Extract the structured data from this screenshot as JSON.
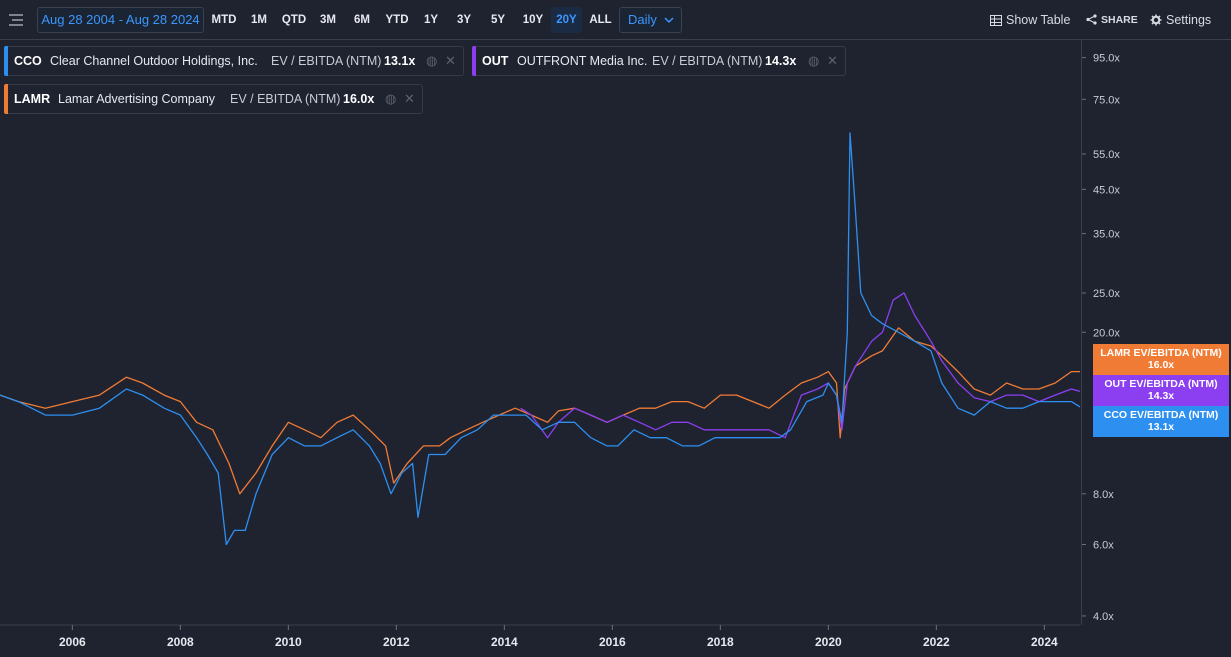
{
  "toolbar": {
    "date_range": "Aug 28 2004 - Aug 28 2024",
    "periods": [
      "MTD",
      "1M",
      "QTD",
      "3M",
      "6M",
      "YTD",
      "1Y",
      "3Y",
      "5Y",
      "10Y",
      "20Y",
      "ALL"
    ],
    "active_period": "20Y",
    "interval": "Daily",
    "show_table": "Show Table",
    "share": "SHARE",
    "settings": "Settings"
  },
  "legend": [
    {
      "ticker": "CCO",
      "name": "Clear Channel Outdoor Holdings, Inc.",
      "metric": "EV / EBITDA (NTM)",
      "value": "13.1x",
      "color": "#2d8ff0"
    },
    {
      "ticker": "OUT",
      "name": "OUTFRONT Media Inc.",
      "metric": "EV / EBITDA (NTM)",
      "value": "14.3x",
      "color": "#8b3ff0"
    },
    {
      "ticker": "LAMR",
      "name": "Lamar Advertising Company",
      "metric": "EV / EBITDA (NTM)",
      "value": "16.0x",
      "color": "#f07b35"
    }
  ],
  "tags": [
    {
      "label": "LAMR EV/EBITDA (NTM)",
      "value": "16.0x",
      "color": "#f07b35"
    },
    {
      "label": "OUT EV/EBITDA (NTM)",
      "value": "14.3x",
      "color": "#8b3ff0"
    },
    {
      "label": "CCO EV/EBITDA (NTM)",
      "value": "13.1x",
      "color": "#2d8ff0"
    }
  ],
  "chart_data": {
    "type": "line",
    "y_scale": "log",
    "ylim": [
      3.8,
      105
    ],
    "xlim": [
      2004.66,
      2024.66
    ],
    "y_ticks": [
      4,
      6,
      8,
      20,
      25,
      35,
      45,
      55,
      75,
      95
    ],
    "y_tick_labels": [
      "4.0x",
      "6.0x",
      "8.0x",
      "20.0x",
      "25.0x",
      "35.0x",
      "45.0x",
      "55.0x",
      "75.0x",
      "95.0x"
    ],
    "x_ticks": [
      2006,
      2008,
      2010,
      2012,
      2014,
      2016,
      2018,
      2020,
      2022,
      2024
    ],
    "x_tick_labels": [
      "2006",
      "2008",
      "2010",
      "2012",
      "2014",
      "2016",
      "2018",
      "2020",
      "2022",
      "2024"
    ],
    "series": [
      {
        "name": "LAMR",
        "color": "#f07b35",
        "x": [
          2004.66,
          2005.0,
          2005.5,
          2006.0,
          2006.5,
          2007.0,
          2007.3,
          2007.7,
          2008.0,
          2008.3,
          2008.6,
          2008.9,
          2009.1,
          2009.4,
          2009.7,
          2010.0,
          2010.3,
          2010.6,
          2010.9,
          2011.2,
          2011.5,
          2011.8,
          2011.95,
          2012.2,
          2012.5,
          2012.8,
          2013.0,
          2013.3,
          2013.6,
          2013.9,
          2014.2,
          2014.5,
          2014.8,
          2015.0,
          2015.3,
          2015.6,
          2015.9,
          2016.2,
          2016.5,
          2016.8,
          2017.1,
          2017.4,
          2017.7,
          2018.0,
          2018.3,
          2018.6,
          2018.9,
          2019.2,
          2019.5,
          2019.8,
          2020.0,
          2020.15,
          2020.22,
          2020.3,
          2020.5,
          2020.8,
          2021.0,
          2021.3,
          2021.6,
          2021.9,
          2022.1,
          2022.4,
          2022.7,
          2023.0,
          2023.3,
          2023.6,
          2023.9,
          2024.2,
          2024.5,
          2024.66
        ],
        "y": [
          14.0,
          13.5,
          13.0,
          13.5,
          14.0,
          15.5,
          15.0,
          14.0,
          13.5,
          12.0,
          11.5,
          9.5,
          8.0,
          9.0,
          10.5,
          12.0,
          11.5,
          11.0,
          12.0,
          12.5,
          11.5,
          10.5,
          8.5,
          9.5,
          10.5,
          10.5,
          11.0,
          11.5,
          12.0,
          12.5,
          13.0,
          12.5,
          12.0,
          12.8,
          13.0,
          12.5,
          12.0,
          12.5,
          13.0,
          13.0,
          13.5,
          13.5,
          13.0,
          14.0,
          14.0,
          13.5,
          13.0,
          14.0,
          15.0,
          15.5,
          16.0,
          15.0,
          11.0,
          14.5,
          16.5,
          17.5,
          18.0,
          20.5,
          19.0,
          18.5,
          17.5,
          16.0,
          14.5,
          14.0,
          15.0,
          14.5,
          14.5,
          15.0,
          16.0,
          16.0
        ]
      },
      {
        "name": "OUT",
        "color": "#8b3ff0",
        "x": [
          2014.3,
          2014.5,
          2014.8,
          2015.0,
          2015.3,
          2015.6,
          2015.9,
          2016.2,
          2016.5,
          2016.8,
          2017.1,
          2017.4,
          2017.7,
          2018.0,
          2018.3,
          2018.6,
          2018.9,
          2019.2,
          2019.5,
          2019.8,
          2020.0,
          2020.15,
          2020.25,
          2020.35,
          2020.5,
          2020.8,
          2021.0,
          2021.2,
          2021.4,
          2021.6,
          2021.9,
          2022.1,
          2022.4,
          2022.7,
          2023.0,
          2023.3,
          2023.6,
          2023.9,
          2024.2,
          2024.5,
          2024.66
        ],
        "y": [
          13.0,
          12.5,
          11.0,
          12.0,
          13.0,
          12.5,
          12.0,
          12.5,
          12.0,
          11.5,
          12.0,
          12.0,
          11.5,
          11.5,
          11.5,
          11.5,
          11.5,
          11.0,
          14.0,
          14.5,
          15.0,
          14.0,
          11.5,
          15.0,
          16.5,
          19.0,
          20.0,
          24.0,
          25.0,
          22.0,
          19.0,
          17.0,
          15.0,
          13.8,
          13.5,
          14.0,
          14.0,
          13.5,
          14.0,
          14.5,
          14.3
        ]
      },
      {
        "name": "CCO",
        "color": "#2d8ff0",
        "x": [
          2004.66,
          2005.0,
          2005.5,
          2006.0,
          2006.5,
          2007.0,
          2007.3,
          2007.7,
          2008.0,
          2008.3,
          2008.5,
          2008.7,
          2008.85,
          2009.0,
          2009.2,
          2009.4,
          2009.7,
          2010.0,
          2010.3,
          2010.6,
          2010.9,
          2011.2,
          2011.5,
          2011.7,
          2011.9,
          2012.1,
          2012.3,
          2012.4,
          2012.6,
          2012.9,
          2013.2,
          2013.5,
          2013.8,
          2014.1,
          2014.4,
          2014.7,
          2015.0,
          2015.3,
          2015.6,
          2015.9,
          2016.1,
          2016.4,
          2016.7,
          2017.0,
          2017.3,
          2017.6,
          2017.9,
          2018.2,
          2018.5,
          2018.8,
          2019.1,
          2019.3,
          2019.6,
          2019.9,
          2020.0,
          2020.15,
          2020.25,
          2020.35,
          2020.4,
          2020.5,
          2020.6,
          2020.8,
          2021.0,
          2021.3,
          2021.6,
          2021.9,
          2022.1,
          2022.4,
          2022.7,
          2023.0,
          2023.3,
          2023.6,
          2023.9,
          2024.2,
          2024.5,
          2024.66
        ],
        "y": [
          14.0,
          13.5,
          12.5,
          12.5,
          13.0,
          14.5,
          14.0,
          13.0,
          12.5,
          11.0,
          10.0,
          9.0,
          6.0,
          6.5,
          6.5,
          8.0,
          10.0,
          11.0,
          10.5,
          10.5,
          11.0,
          11.5,
          10.5,
          9.5,
          8.0,
          9.0,
          9.5,
          7.0,
          10.0,
          10.0,
          11.0,
          11.5,
          12.5,
          12.5,
          12.5,
          11.5,
          12.0,
          12.0,
          11.0,
          10.5,
          10.5,
          11.5,
          11.0,
          11.0,
          10.5,
          10.5,
          11.0,
          11.0,
          11.0,
          11.0,
          11.0,
          11.5,
          13.5,
          14.0,
          15.0,
          14.0,
          12.0,
          20.0,
          62.0,
          40.0,
          25.0,
          22.0,
          21.0,
          20.0,
          19.0,
          18.0,
          15.0,
          13.0,
          12.5,
          13.5,
          13.0,
          13.0,
          13.5,
          13.5,
          13.5,
          13.1
        ]
      }
    ]
  }
}
